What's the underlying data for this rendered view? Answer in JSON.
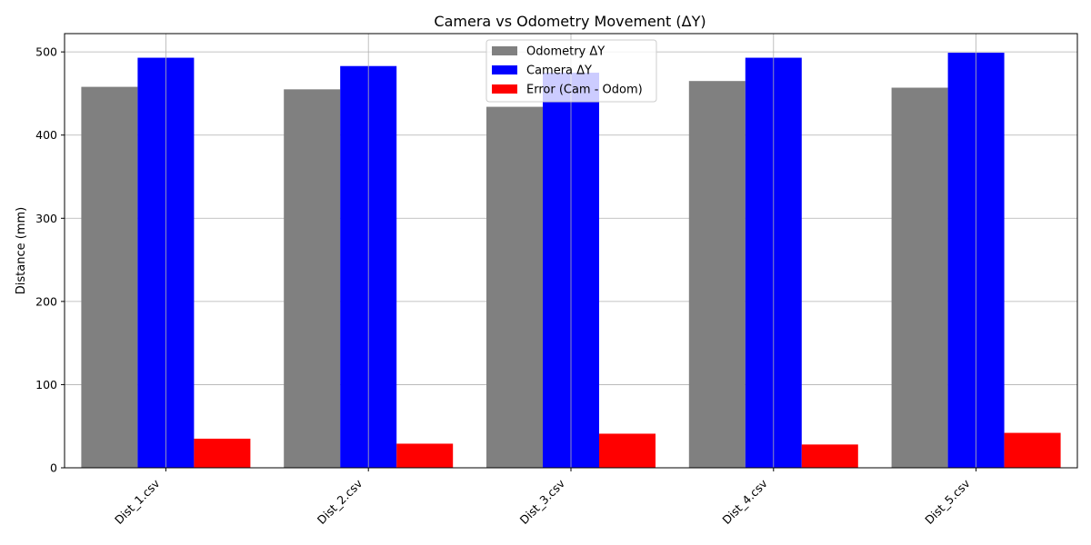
{
  "chart_data": {
    "type": "bar",
    "title": "Camera vs Odometry Movement (ΔY)",
    "xlabel": "",
    "ylabel": "Distance (mm)",
    "categories": [
      "Dist_1.csv",
      "Dist_2.csv",
      "Dist_3.csv",
      "Dist_4.csv",
      "Dist_5.csv"
    ],
    "series": [
      {
        "name": "Odometry ΔY",
        "color": "#808080",
        "values": [
          458,
          455,
          434,
          465,
          457
        ]
      },
      {
        "name": "Camera ΔY",
        "color": "#0000ff",
        "values": [
          493,
          483,
          475,
          493,
          499
        ]
      },
      {
        "name": "Error (Cam - Odom)",
        "color": "#ff0000",
        "values": [
          35,
          29,
          41,
          28,
          42
        ]
      }
    ],
    "ylim": [
      0,
      522
    ],
    "yticks": [
      0,
      100,
      200,
      300,
      400,
      500
    ],
    "grid": true,
    "legend_position": "top-center"
  }
}
